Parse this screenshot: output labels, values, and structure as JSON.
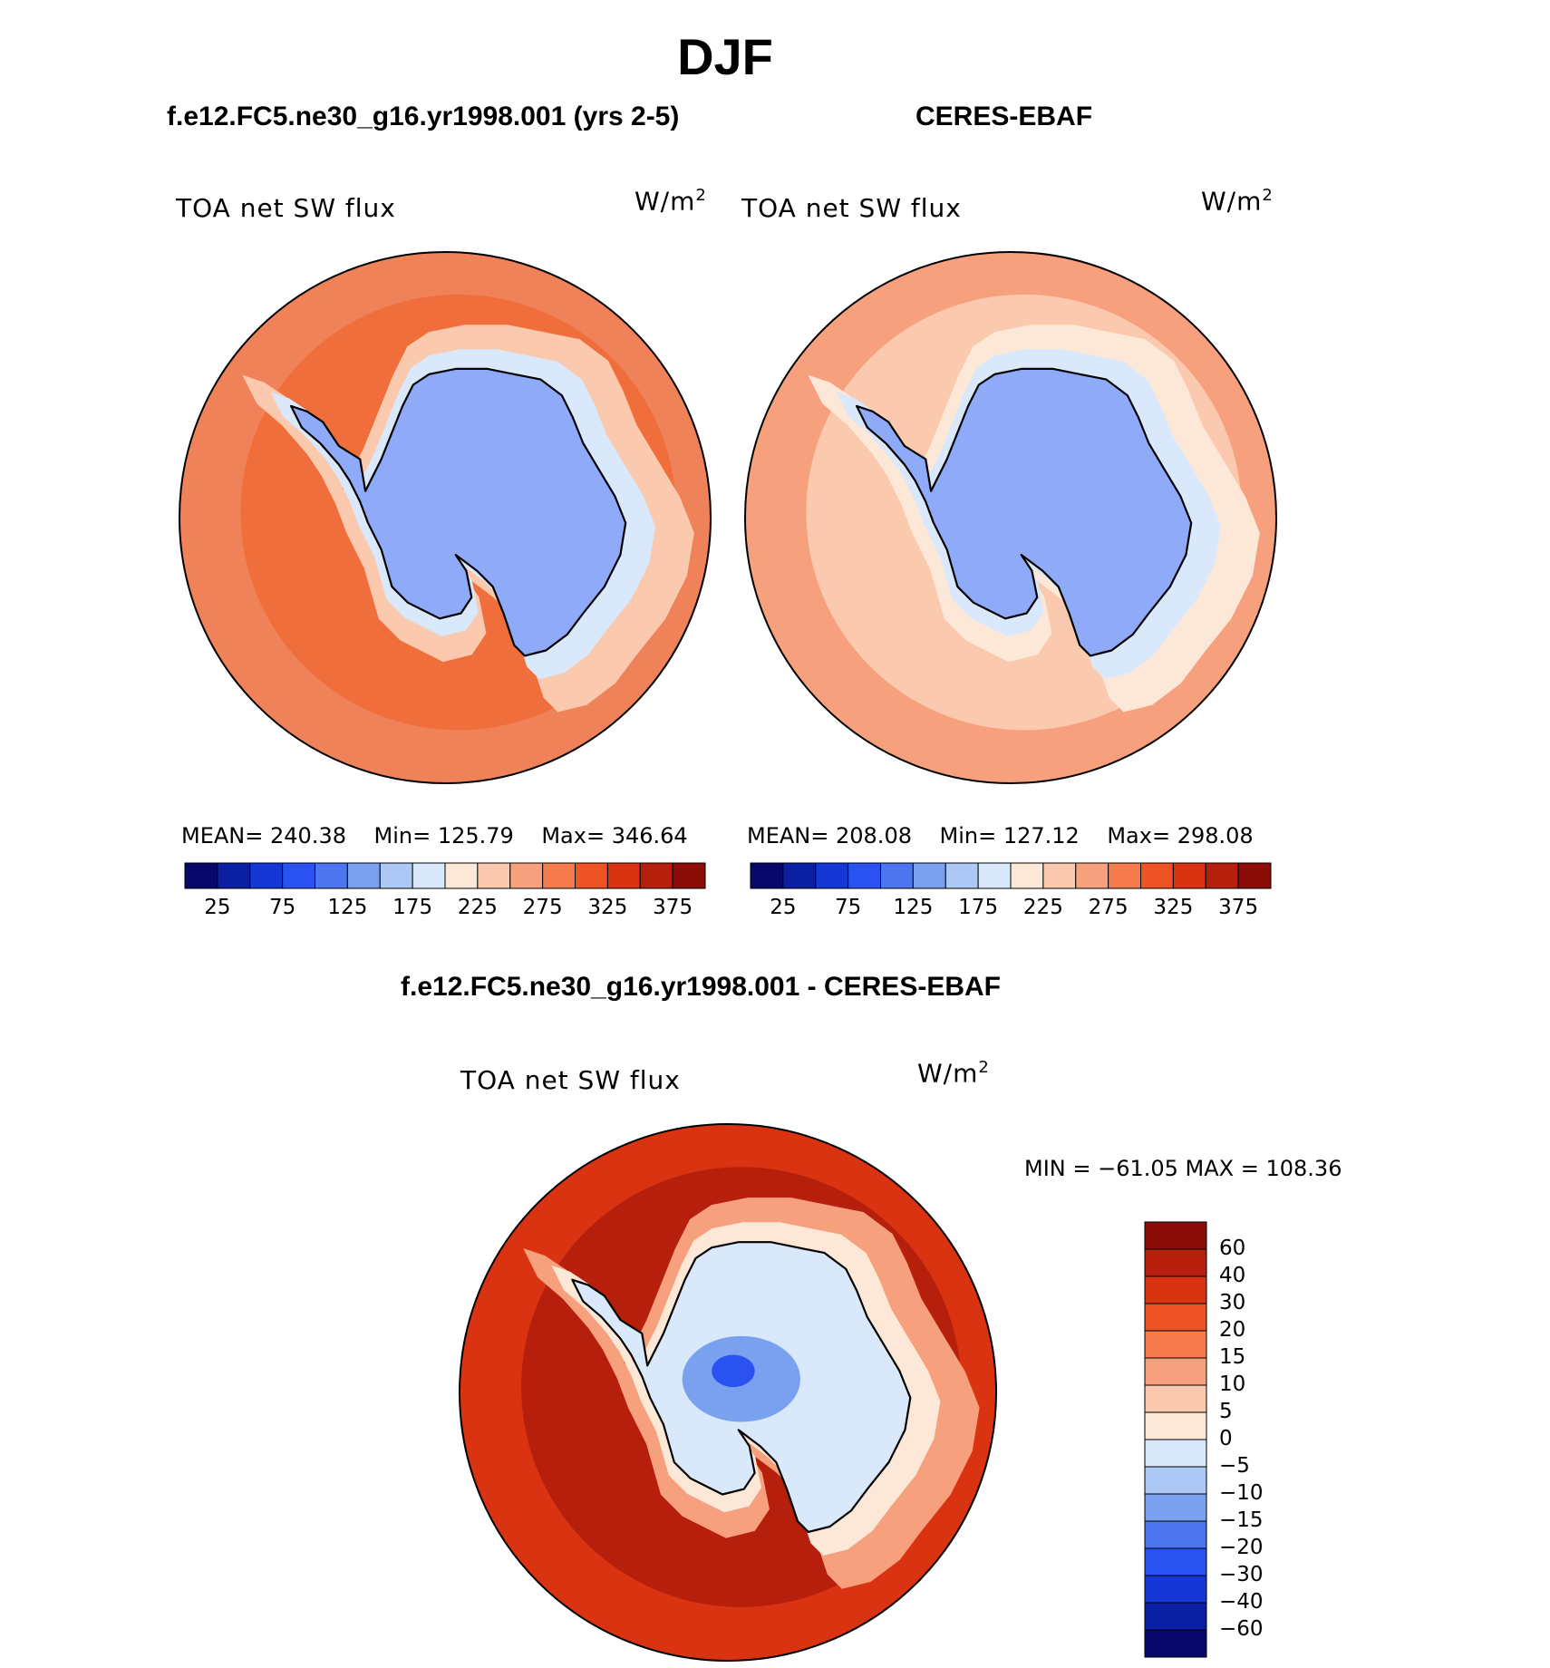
{
  "title": "DJF",
  "chart_data": [
    {
      "type": "heatmap",
      "projection": "south-polar-stereographic",
      "case_title": "f.e12.FC5.ne30_g16.yr1998.001 (yrs 2-5)",
      "variable": "TOA net SW flux",
      "units": "W/m",
      "units_exp": "2",
      "stats": {
        "mean_label": "MEAN=",
        "mean": "240.38",
        "min_label": "Min=",
        "min": "125.79",
        "max_label": "Max=",
        "max": "346.64"
      },
      "colorbar": {
        "orientation": "horizontal",
        "levels": [
          "25",
          "75",
          "125",
          "175",
          "225",
          "275",
          "325",
          "375"
        ],
        "colors": [
          "#08086b",
          "#0a1fa3",
          "#1437d6",
          "#2a52f0",
          "#4d75f0",
          "#7aa0f0",
          "#aec8f5",
          "#d9e8fa",
          "#fde8d8",
          "#fbc9ae",
          "#f7a07d",
          "#f57a4c",
          "#ee5423",
          "#d93312",
          "#b51f0c",
          "#8a0e07"
        ]
      },
      "fields": {
        "ocean": "#f06e3c",
        "ocean_outer": "#f0825a",
        "coast_band": "#fbc9ae",
        "ice_edge": "#d9e8fa",
        "land": "#8eaaf8"
      }
    },
    {
      "type": "heatmap",
      "projection": "south-polar-stereographic",
      "case_title": "CERES-EBAF",
      "variable": "TOA net SW flux",
      "units": "W/m",
      "units_exp": "2",
      "stats": {
        "mean_label": "MEAN=",
        "mean": "208.08",
        "min_label": "Min=",
        "min": "127.12",
        "max_label": "Max=",
        "max": "298.08"
      },
      "colorbar": {
        "orientation": "horizontal",
        "levels": [
          "25",
          "75",
          "125",
          "175",
          "225",
          "275",
          "325",
          "375"
        ],
        "colors": [
          "#08086b",
          "#0a1fa3",
          "#1437d6",
          "#2a52f0",
          "#4d75f0",
          "#7aa0f0",
          "#aec8f5",
          "#d9e8fa",
          "#fde8d8",
          "#fbc9ae",
          "#f7a07d",
          "#f57a4c",
          "#ee5423",
          "#d93312",
          "#b51f0c",
          "#8a0e07"
        ]
      },
      "fields": {
        "ocean": "#fbc9ae",
        "ocean_outer": "#f7a07d",
        "coast_band": "#fde8d8",
        "ice_edge": "#d9e8fa",
        "land": "#8eaaf8"
      }
    },
    {
      "type": "heatmap",
      "projection": "south-polar-stereographic",
      "case_title": "f.e12.FC5.ne30_g16.yr1998.001 - CERES-EBAF",
      "variable": "TOA net SW flux",
      "units": "W/m",
      "units_exp": "2",
      "stats": {
        "min_max": "MIN = −61.05 MAX = 108.36",
        "min": -61.05,
        "max": 108.36
      },
      "colorbar": {
        "orientation": "vertical",
        "levels": [
          "60",
          "40",
          "30",
          "20",
          "15",
          "10",
          "5",
          "0",
          "−5",
          "−10",
          "−15",
          "−20",
          "−30",
          "−40",
          "−60"
        ],
        "colors": [
          "#8a0e07",
          "#b51f0c",
          "#d93312",
          "#ee5423",
          "#f57a4c",
          "#f7a07d",
          "#fbc9ae",
          "#fde8d8",
          "#d9e8fa",
          "#aec8f5",
          "#7aa0f0",
          "#4d75f0",
          "#2a52f0",
          "#1437d6",
          "#0a1fa3",
          "#08086b"
        ]
      },
      "fields": {
        "ocean": "#b51f0c",
        "ocean_outer": "#d93312",
        "coast_band": "#f7a07d",
        "ice_edge": "#fde8d8",
        "land": "#d9e8fa",
        "land_neg": "#7aa0f0"
      }
    }
  ]
}
